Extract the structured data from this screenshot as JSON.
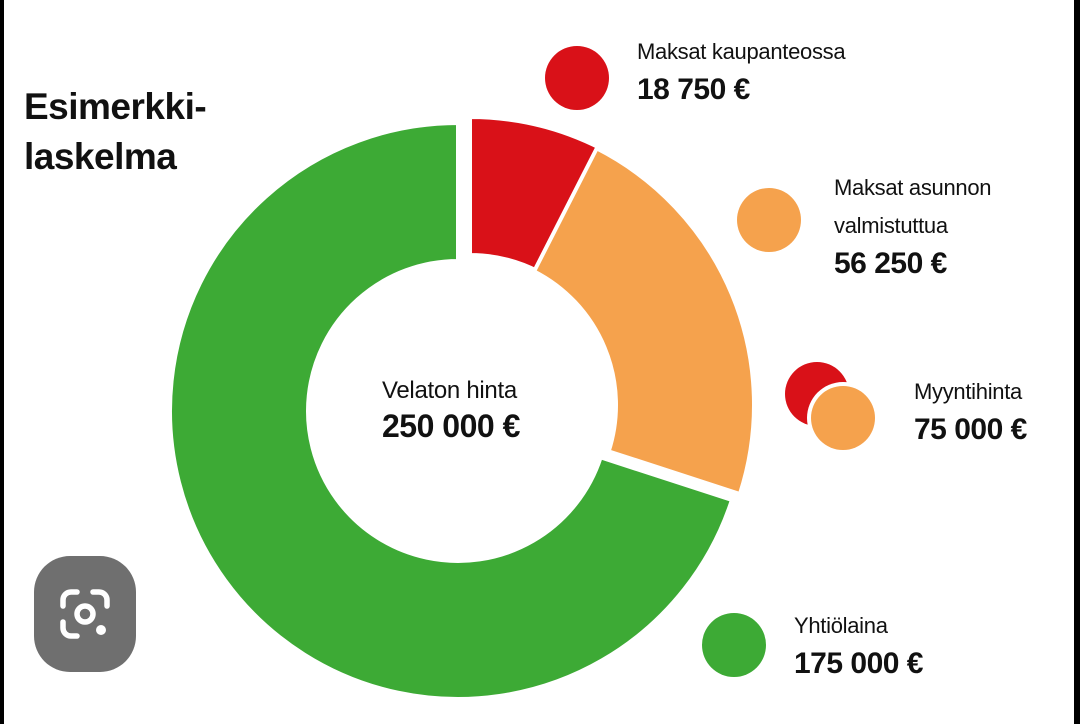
{
  "title": {
    "line1": "Esimerkki-",
    "line2": "laskelma"
  },
  "chart_data": {
    "type": "pie",
    "donut": true,
    "title": "Esimerkki-laskelma",
    "center": {
      "label": "Velaton hinta",
      "value_text": "250 000 €",
      "value": 250000
    },
    "slices": [
      {
        "key": "kaupanteko",
        "label": "Maksat kaupanteossa",
        "value": 18750,
        "value_text": "18 750 €",
        "color": "#d91118"
      },
      {
        "key": "valmistuttua",
        "label": "Maksat asunnon valmistuttua",
        "value": 56250,
        "value_text": "56 250 €",
        "color": "#f5a24d"
      },
      {
        "key": "yhtiolaina",
        "label": "Yhtiölaina",
        "value": 175000,
        "value_text": "175 000 €",
        "color": "#3daa35"
      }
    ],
    "legend": [
      {
        "label": "Maksat kaupanteossa",
        "value_text": "18 750 €",
        "colors": [
          "#d91118"
        ]
      },
      {
        "label_lines": [
          "Maksat asunnon",
          "valmistuttua"
        ],
        "value_text": "56 250 €",
        "colors": [
          "#f5a24d"
        ]
      },
      {
        "label": "Myyntihinta",
        "value_text": "75 000 €",
        "value": 75000,
        "colors": [
          "#d91118",
          "#f5a24d"
        ]
      },
      {
        "label": "Yhtiölaina",
        "value_text": "175 000 €",
        "colors": [
          "#3daa35"
        ]
      }
    ],
    "legend_placement": "right"
  },
  "icons": {
    "lens": "lens-icon"
  }
}
